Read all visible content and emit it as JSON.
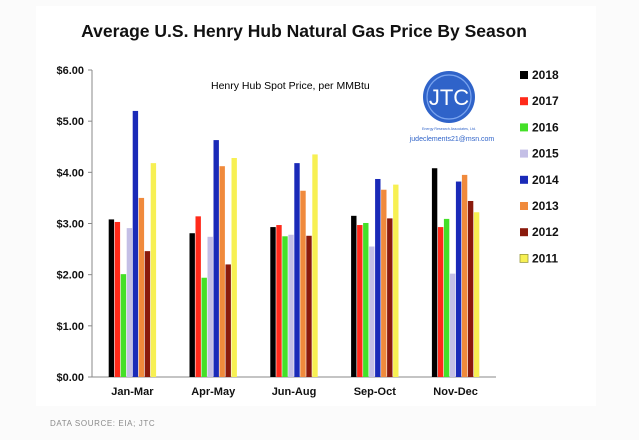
{
  "source_note": "DATA SOURCE: EIA; JTC",
  "logo": {
    "letters": "JTC",
    "tagline": "Energy Research Associates, Ltd.",
    "email": "judeclements21@msn.com",
    "color": "#2f63c9"
  },
  "chart_data": {
    "type": "bar",
    "title": "Average U.S. Henry Hub Natural Gas Price By Season",
    "annotation": "Henry Hub Spot Price, per MMBtu",
    "xlabel": "",
    "ylabel": "",
    "ylim": [
      0,
      6
    ],
    "yticks": [
      "$0.00",
      "$1.00",
      "$2.00",
      "$3.00",
      "$4.00",
      "$5.00",
      "$6.00"
    ],
    "ytick_values": [
      0,
      1,
      2,
      3,
      4,
      5,
      6
    ],
    "grid": false,
    "legend_position": "right",
    "categories": [
      "Jan-Mar",
      "Apr-May",
      "Jun-Aug",
      "Sep-Oct",
      "Nov-Dec"
    ],
    "series": [
      {
        "name": "2018",
        "color": "#000000",
        "values": [
          3.08,
          2.81,
          2.93,
          3.15,
          4.08
        ]
      },
      {
        "name": "2017",
        "color": "#ff2a1a",
        "values": [
          3.03,
          3.14,
          2.97,
          2.97,
          2.93
        ]
      },
      {
        "name": "2016",
        "color": "#44e028",
        "values": [
          2.01,
          1.94,
          2.75,
          3.01,
          3.09
        ]
      },
      {
        "name": "2015",
        "color": "#c4bfe6",
        "values": [
          2.91,
          2.74,
          2.78,
          2.55,
          2.02
        ]
      },
      {
        "name": "2014",
        "color": "#1a2ab8",
        "values": [
          5.2,
          4.63,
          4.18,
          3.87,
          3.82
        ]
      },
      {
        "name": "2013",
        "color": "#f08a3c",
        "values": [
          3.5,
          4.12,
          3.64,
          3.66,
          3.95
        ]
      },
      {
        "name": "2012",
        "color": "#8a1a0c",
        "values": [
          2.46,
          2.2,
          2.76,
          3.1,
          3.44
        ]
      },
      {
        "name": "2011",
        "color": "#f7f053",
        "values": [
          4.18,
          4.28,
          4.35,
          3.76,
          3.22
        ]
      }
    ]
  }
}
